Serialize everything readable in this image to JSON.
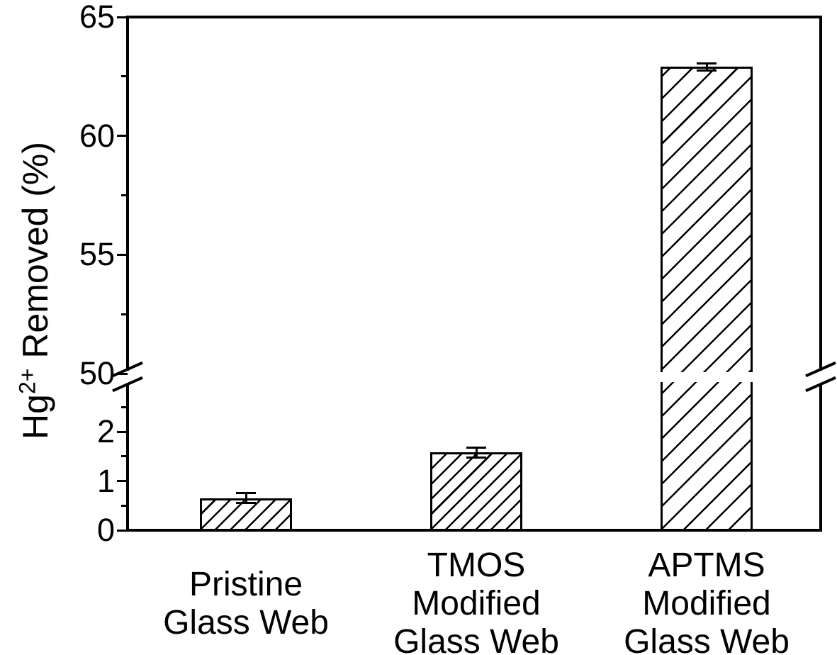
{
  "figure": {
    "background_color": "#ffffff",
    "ink_color": "#000000"
  },
  "chart_data": {
    "type": "bar",
    "title": "",
    "xlabel": "",
    "ylabel": {
      "prefix": "Hg",
      "superscript": "2+",
      "suffix": " Removed (%)"
    },
    "categories": [
      {
        "lines": [
          "Pristine",
          "Glass Web"
        ]
      },
      {
        "lines": [
          "TMOS",
          "Modified",
          "Glass Web"
        ]
      },
      {
        "lines": [
          "APTMS",
          "Modified",
          "Glass Web"
        ]
      }
    ],
    "series": [
      {
        "name": "Hg2+ Removed (%)",
        "values": [
          0.65,
          1.58,
          62.9
        ],
        "errors": [
          0.1,
          0.1,
          0.15
        ]
      }
    ],
    "bar_style": {
      "fill": "diagonal-hatch",
      "hatch_direction": "/",
      "outline_color": "#000000",
      "fill_background": "#ffffff",
      "hatch_density_per_bar": [
        "dense",
        "dense",
        "sparse"
      ]
    },
    "y_axis": {
      "broken": true,
      "break_between": [
        3.2,
        50
      ],
      "lower_segment": {
        "range": [
          0,
          3.2
        ],
        "major_ticks": [
          0,
          1,
          2
        ],
        "minor_ticks": [
          0.5,
          1.5,
          2.5
        ]
      },
      "upper_segment": {
        "range": [
          50,
          65
        ],
        "major_ticks": [
          50,
          55,
          60,
          65
        ],
        "minor_ticks": [
          52.5,
          57.5,
          62.5
        ]
      }
    },
    "x_axis": {
      "ticks_visible": false
    },
    "grid": false,
    "legend": false
  }
}
